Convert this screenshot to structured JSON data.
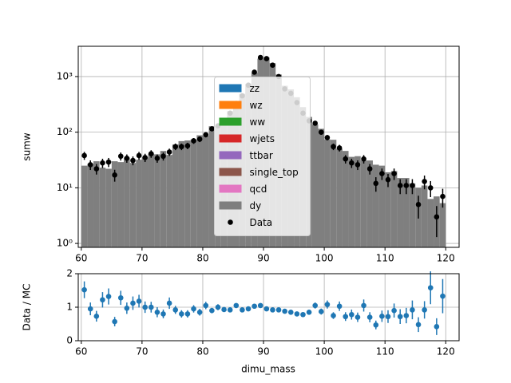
{
  "chart_data": [
    {
      "type": "histogram",
      "ylabel": "sumw",
      "yscale": "log",
      "grid": true,
      "legend": "center",
      "xlim": [
        59.5,
        122.2
      ],
      "xticks": [
        60,
        70,
        80,
        90,
        100,
        110,
        120
      ],
      "ylim": [
        0.85,
        3500
      ],
      "yticks": [
        {
          "value": 1,
          "label": "10⁰"
        },
        {
          "value": 10,
          "label": "10¹"
        },
        {
          "value": 100,
          "label": "10²"
        },
        {
          "value": 1000,
          "label": "10³"
        }
      ],
      "bins": [
        60,
        61,
        62,
        63,
        64,
        65,
        66,
        67,
        68,
        69,
        70,
        71,
        72,
        73,
        74,
        75,
        76,
        77,
        78,
        79,
        80,
        81,
        82,
        83,
        84,
        85,
        86,
        87,
        88,
        89,
        90,
        91,
        92,
        93,
        94,
        95,
        96,
        97,
        98,
        99,
        100,
        101,
        102,
        103,
        104,
        105,
        106,
        107,
        108,
        109,
        110,
        111,
        112,
        113,
        114,
        115,
        116,
        117,
        118,
        119,
        120
      ],
      "series": [
        {
          "name": "zz",
          "color": "#1f77b4",
          "values": [
            0,
            0,
            0,
            0,
            0,
            0,
            0,
            0,
            0,
            0,
            0,
            0,
            0,
            0,
            0,
            0,
            0,
            0,
            0,
            0,
            0,
            0,
            0,
            0,
            0,
            0,
            0,
            0,
            0,
            0,
            0,
            0,
            0,
            0,
            0,
            0,
            0,
            0,
            0,
            0,
            0,
            0,
            0,
            0,
            0,
            0,
            0,
            0,
            0,
            0,
            0,
            0,
            0,
            0,
            0,
            0,
            0,
            0,
            0,
            0
          ]
        },
        {
          "name": "wz",
          "color": "#ff7f0e",
          "values": [
            0,
            0,
            0,
            0,
            0,
            0,
            0,
            0,
            0,
            0,
            0,
            0,
            0,
            0,
            0,
            0,
            0,
            0,
            0,
            0,
            0,
            0,
            0,
            0,
            0,
            0,
            0,
            0,
            0,
            0,
            0,
            0,
            0,
            0,
            0,
            0,
            0,
            0,
            0,
            0,
            0,
            0,
            0,
            0,
            0,
            0,
            0,
            0,
            0,
            0,
            0,
            0,
            0,
            0,
            0,
            0,
            0,
            0,
            0,
            0
          ]
        },
        {
          "name": "ww",
          "color": "#2ca02c",
          "values": [
            0,
            0,
            0,
            0,
            0,
            0,
            0,
            0,
            0,
            0,
            0,
            0,
            0,
            0,
            0,
            0,
            0,
            0,
            0,
            0,
            0,
            0,
            0,
            0,
            0,
            0,
            0,
            0,
            0,
            0,
            0,
            0,
            0,
            0,
            0,
            0,
            0,
            0,
            0,
            0,
            0,
            0,
            0,
            0,
            0,
            0,
            0,
            0,
            0,
            0,
            0,
            0,
            0,
            0,
            0,
            0,
            0,
            0,
            0,
            0
          ]
        },
        {
          "name": "wjets",
          "color": "#d62728",
          "values": [
            0,
            0,
            0,
            0,
            0,
            0,
            0,
            0,
            0,
            0,
            0,
            0,
            0,
            0,
            0,
            0,
            0,
            0,
            0,
            0,
            0,
            0,
            0,
            0,
            0,
            0,
            0,
            0,
            0,
            0,
            0,
            0,
            0,
            0,
            0,
            0,
            0,
            0,
            0,
            0,
            0,
            0,
            0,
            0,
            0,
            0,
            0,
            0,
            0,
            0,
            0,
            0,
            0,
            0,
            0,
            0,
            0,
            0,
            0,
            0
          ]
        },
        {
          "name": "ttbar",
          "color": "#9467bd",
          "values": [
            0,
            0,
            0,
            0,
            0,
            0,
            0,
            0,
            0,
            0,
            0,
            0,
            0,
            0,
            0,
            0,
            0,
            0,
            0,
            0,
            0,
            0,
            0,
            0,
            0,
            0,
            0,
            0,
            0,
            0,
            0,
            0,
            0,
            0,
            0,
            0,
            0,
            0,
            0,
            0,
            0,
            0,
            0,
            0,
            0,
            0,
            0,
            0,
            0,
            0,
            0,
            0,
            0,
            0,
            0,
            0,
            0,
            0,
            0,
            0
          ]
        },
        {
          "name": "single_top",
          "color": "#8c564b",
          "values": [
            0,
            0,
            0,
            0,
            0,
            0,
            0,
            0,
            0,
            0,
            0,
            0,
            0,
            0,
            0,
            0,
            0,
            0,
            0,
            0,
            0,
            0,
            0,
            0,
            0,
            0,
            0,
            0,
            0,
            0,
            0,
            0,
            0,
            0,
            0,
            0,
            0,
            0,
            0,
            0,
            0,
            0,
            0,
            0,
            0,
            0,
            0,
            0,
            0,
            0,
            0,
            0,
            0,
            0,
            0,
            0,
            0,
            0,
            0,
            0
          ]
        },
        {
          "name": "qcd",
          "color": "#e377c2",
          "values": [
            0,
            0,
            0,
            0,
            0,
            0,
            0,
            0,
            0,
            0,
            0,
            0,
            0,
            0,
            0,
            0,
            0,
            0,
            0,
            0,
            0,
            0,
            0,
            0,
            0,
            0,
            0,
            0,
            0,
            0,
            0,
            0,
            0,
            0,
            0,
            0,
            0,
            0,
            0,
            0,
            0,
            0,
            0,
            0,
            0,
            0,
            0,
            0,
            0,
            0,
            0,
            0,
            0,
            0,
            0,
            0,
            0,
            0,
            0,
            0
          ]
        },
        {
          "name": "dy",
          "color": "#7f7f7f",
          "values": [
            25,
            27,
            30,
            23,
            22,
            30,
            29,
            35,
            28,
            32,
            35,
            41,
            40,
            46,
            39,
            60,
            69,
            71,
            74,
            88,
            86,
            128,
            130,
            172,
            239,
            314,
            489,
            737,
            1165,
            2095,
            2210,
            1740,
            1087,
            682,
            588,
            425,
            282,
            188,
            138,
            115,
            74,
            73,
            50,
            46,
            36,
            37,
            31,
            31,
            26,
            25,
            19,
            20,
            15,
            15,
            12,
            10,
            11,
            6.3,
            7,
            5.3
          ]
        }
      ],
      "data": {
        "name": "Data",
        "color": "#000000",
        "values": [
          38,
          26,
          22,
          28,
          29,
          17,
          37,
          34,
          31,
          38,
          35,
          41,
          34,
          37,
          44,
          55,
          55,
          57,
          70,
          75,
          90,
          115,
          130,
          160,
          220,
          330,
          450,
          700,
          1200,
          2200,
          2100,
          1600,
          1000,
          600,
          500,
          340,
          220,
          160,
          145,
          100,
          80,
          55,
          52,
          33,
          28,
          26,
          33,
          22,
          12,
          18,
          14,
          18,
          11,
          11,
          11,
          5,
          13,
          10,
          3,
          7
        ],
        "errors": [
          6.2,
          5.1,
          4.7,
          5.3,
          5.4,
          4.1,
          6.1,
          5.8,
          5.6,
          6.2,
          5.9,
          6.4,
          5.8,
          6.1,
          6.6,
          7.4,
          7.4,
          7.5,
          8.4,
          8.7,
          9.5,
          10.7,
          11.4,
          12.6,
          14.8,
          18.2,
          21.2,
          26.5,
          34.6,
          46.9,
          45.8,
          40,
          31.6,
          24.5,
          22.4,
          18.4,
          14.8,
          12.6,
          12,
          10,
          8.9,
          7.4,
          7.2,
          5.7,
          5.3,
          5.1,
          5.7,
          4.7,
          3.5,
          4.2,
          3.7,
          4.2,
          3.3,
          3.3,
          3.3,
          2.2,
          3.6,
          3.2,
          1.7,
          2.6
        ]
      }
    },
    {
      "type": "scatter",
      "xlabel": "dimu_mass",
      "ylabel": "Data / MC",
      "grid": true,
      "color": "#1f77b4",
      "xlim": [
        59.5,
        122.2
      ],
      "xticks": [
        60,
        70,
        80,
        90,
        100,
        110,
        120
      ],
      "ylim": [
        0,
        2
      ],
      "yticks": [
        0,
        1,
        2
      ],
      "x": [
        60.5,
        61.5,
        62.5,
        63.5,
        64.5,
        65.5,
        66.5,
        67.5,
        68.5,
        69.5,
        70.5,
        71.5,
        72.5,
        73.5,
        74.5,
        75.5,
        76.5,
        77.5,
        78.5,
        79.5,
        80.5,
        81.5,
        82.5,
        83.5,
        84.5,
        85.5,
        86.5,
        87.5,
        88.5,
        89.5,
        90.5,
        91.5,
        92.5,
        93.5,
        94.5,
        95.5,
        96.5,
        97.5,
        98.5,
        99.5,
        100.5,
        101.5,
        102.5,
        103.5,
        104.5,
        105.5,
        106.5,
        107.5,
        108.5,
        109.5,
        110.5,
        111.5,
        112.5,
        113.5,
        114.5,
        115.5,
        116.5,
        117.5,
        118.5,
        119.5
      ],
      "values": [
        1.52,
        0.95,
        0.73,
        1.22,
        1.32,
        0.57,
        1.28,
        0.97,
        1.12,
        1.18,
        1.0,
        1.0,
        0.85,
        0.8,
        1.12,
        0.92,
        0.8,
        0.8,
        0.95,
        0.85,
        1.05,
        0.9,
        1.0,
        0.93,
        0.92,
        1.05,
        0.92,
        0.95,
        1.03,
        1.05,
        0.95,
        0.92,
        0.92,
        0.88,
        0.85,
        0.8,
        0.78,
        0.85,
        1.05,
        0.87,
        1.08,
        0.75,
        1.03,
        0.72,
        0.78,
        0.7,
        1.05,
        0.7,
        0.47,
        0.73,
        0.72,
        0.9,
        0.72,
        0.75,
        0.92,
        0.48,
        0.92,
        1.58,
        0.42,
        1.33
      ],
      "errors": [
        0.25,
        0.19,
        0.16,
        0.23,
        0.24,
        0.14,
        0.21,
        0.17,
        0.2,
        0.19,
        0.17,
        0.16,
        0.15,
        0.13,
        0.17,
        0.12,
        0.11,
        0.11,
        0.11,
        0.1,
        0.11,
        0.08,
        0.09,
        0.07,
        0.06,
        0.06,
        0.04,
        0.04,
        0.03,
        0.02,
        0.02,
        0.02,
        0.03,
        0.04,
        0.04,
        0.04,
        0.05,
        0.07,
        0.09,
        0.09,
        0.12,
        0.1,
        0.14,
        0.13,
        0.15,
        0.14,
        0.18,
        0.15,
        0.13,
        0.17,
        0.19,
        0.21,
        0.22,
        0.23,
        0.28,
        0.22,
        0.26,
        0.49,
        0.25,
        0.51
      ]
    }
  ]
}
